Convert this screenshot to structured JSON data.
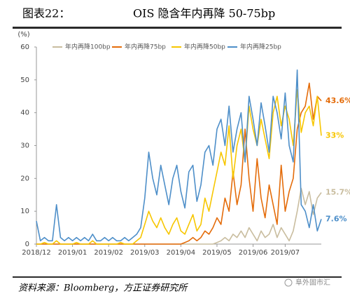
{
  "chart_data": {
    "type": "line",
    "figure_label": "图表22：",
    "title": "OIS 隐含年内再降 50-75bp",
    "y_unit": "(%)",
    "source": "资料来源：Bloomberg，方正证券研究所",
    "watermark": "阜外固市汇",
    "categories": [
      "2018/12",
      null,
      null,
      null,
      null,
      null,
      null,
      null,
      null,
      "2019/01",
      null,
      null,
      null,
      null,
      null,
      null,
      null,
      null,
      "2019/02",
      null,
      null,
      null,
      null,
      null,
      null,
      null,
      null,
      "2019/03",
      null,
      null,
      null,
      null,
      null,
      null,
      null,
      null,
      "2019/04",
      null,
      null,
      null,
      null,
      null,
      null,
      null,
      null,
      "2019/05",
      null,
      null,
      null,
      null,
      null,
      null,
      null,
      null,
      "2019/06",
      null,
      null,
      null,
      null,
      null,
      null,
      null,
      "2019/07",
      null,
      null,
      null,
      null,
      null,
      null,
      null,
      null,
      null
    ],
    "ylim": [
      0,
      60
    ],
    "yticks": [
      0,
      10,
      20,
      30,
      40,
      50,
      60
    ],
    "series": [
      {
        "name": "年内再降100bp",
        "color": "#c9bd9f",
        "values": [
          0,
          0,
          0,
          0,
          0,
          0,
          0,
          0,
          0,
          0,
          0,
          0,
          0,
          0,
          0,
          0,
          0,
          0,
          0,
          0,
          0,
          0,
          0,
          0,
          0,
          0,
          0,
          0,
          0,
          0,
          0,
          0,
          0,
          0,
          0,
          0,
          0,
          0,
          0,
          0,
          0,
          0,
          0,
          0,
          0,
          0.5,
          1,
          2,
          1,
          3,
          2,
          4,
          2,
          5,
          3,
          1,
          4,
          2,
          3,
          6,
          2,
          5,
          3,
          1,
          4,
          10,
          17,
          12,
          16,
          9,
          14,
          15.7
        ],
        "value_labels": [
          null,
          null,
          null,
          null,
          null,
          null,
          null,
          null,
          null,
          null,
          null,
          null,
          null,
          null,
          null,
          null,
          null,
          null,
          null,
          null,
          null,
          null,
          null,
          null,
          null,
          null,
          null,
          null,
          null,
          null,
          null,
          null,
          null,
          null,
          null,
          null,
          null,
          null,
          null,
          null,
          null,
          null,
          null,
          null,
          null,
          null,
          null,
          null,
          null,
          null,
          null,
          null,
          null,
          null,
          null,
          null,
          null,
          null,
          null,
          null,
          null,
          null,
          null,
          null,
          null,
          null,
          null,
          null,
          null,
          null,
          null,
          "15.7%"
        ]
      },
      {
        "name": "年内再降75bp",
        "color": "#e46c0a",
        "values": [
          0,
          0,
          0,
          0,
          0,
          0,
          0,
          0,
          0,
          0,
          0,
          0,
          0,
          0,
          0,
          0,
          0,
          0,
          0,
          0,
          0,
          0,
          0,
          0,
          0,
          0,
          0,
          0,
          0,
          0,
          0,
          0,
          0,
          0,
          0,
          0,
          0,
          0.5,
          1,
          2,
          1,
          2,
          4,
          3,
          5,
          8,
          6,
          14,
          10,
          22,
          12,
          18,
          35,
          20,
          10,
          26,
          14,
          8,
          18,
          12,
          6,
          24,
          10,
          16,
          20,
          35,
          40,
          42,
          49,
          38,
          45,
          43.6
        ],
        "value_labels": [
          null,
          null,
          null,
          null,
          null,
          null,
          null,
          null,
          null,
          null,
          null,
          null,
          null,
          null,
          null,
          null,
          null,
          null,
          null,
          null,
          null,
          null,
          null,
          null,
          null,
          null,
          null,
          null,
          null,
          null,
          null,
          null,
          null,
          null,
          null,
          null,
          null,
          null,
          null,
          null,
          null,
          null,
          null,
          null,
          null,
          null,
          null,
          null,
          null,
          null,
          null,
          null,
          null,
          null,
          null,
          null,
          null,
          null,
          null,
          null,
          null,
          null,
          null,
          null,
          null,
          null,
          null,
          null,
          null,
          null,
          null,
          "43.6%"
        ]
      },
      {
        "name": "年内再降50bp",
        "color": "#f7c600",
        "values": [
          0,
          0,
          0.5,
          0,
          0,
          1,
          0,
          0,
          0,
          0,
          0.5,
          0,
          0,
          0,
          1,
          0,
          0,
          0,
          0,
          0,
          0,
          0.5,
          0,
          0,
          0,
          1,
          2,
          6,
          10,
          7,
          5,
          8,
          5,
          3,
          6,
          8,
          4,
          3,
          6,
          9,
          4,
          6,
          14,
          10,
          16,
          22,
          28,
          24,
          36,
          20,
          30,
          35,
          25,
          42,
          35,
          30,
          38,
          32,
          26,
          40,
          45,
          36,
          42,
          38,
          30,
          47,
          34,
          40,
          42,
          36,
          45,
          33
        ],
        "value_labels": [
          null,
          null,
          null,
          null,
          null,
          null,
          null,
          null,
          null,
          null,
          null,
          null,
          null,
          null,
          null,
          null,
          null,
          null,
          null,
          null,
          null,
          null,
          null,
          null,
          null,
          null,
          null,
          null,
          null,
          null,
          null,
          null,
          null,
          null,
          null,
          null,
          null,
          null,
          null,
          null,
          null,
          null,
          null,
          null,
          null,
          null,
          null,
          null,
          null,
          null,
          null,
          null,
          null,
          null,
          null,
          null,
          null,
          null,
          null,
          null,
          null,
          null,
          null,
          null,
          null,
          null,
          null,
          null,
          null,
          null,
          null,
          "33%"
        ]
      },
      {
        "name": "年内再降25bp",
        "color": "#4e8fc9",
        "values": [
          7,
          1,
          2,
          1,
          1,
          12,
          2,
          1,
          2,
          1,
          2,
          1,
          2,
          1,
          3,
          1,
          1,
          2,
          1,
          2,
          1,
          1,
          2,
          1,
          2,
          3,
          5,
          14,
          28,
          20,
          15,
          24,
          18,
          12,
          20,
          24,
          16,
          11,
          22,
          24,
          13,
          18,
          28,
          30,
          24,
          35,
          38,
          30,
          42,
          28,
          35,
          40,
          25,
          45,
          38,
          30,
          43,
          36,
          28,
          45,
          40,
          32,
          46,
          30,
          25,
          53,
          12,
          10,
          5,
          12,
          4,
          7.6
        ],
        "value_labels": [
          null,
          null,
          null,
          null,
          null,
          null,
          null,
          null,
          null,
          null,
          null,
          null,
          null,
          null,
          null,
          null,
          null,
          null,
          null,
          null,
          null,
          null,
          null,
          null,
          null,
          null,
          null,
          null,
          null,
          null,
          null,
          null,
          null,
          null,
          null,
          null,
          null,
          null,
          null,
          null,
          null,
          null,
          null,
          null,
          null,
          null,
          null,
          null,
          null,
          null,
          null,
          null,
          null,
          null,
          null,
          null,
          null,
          null,
          null,
          null,
          null,
          null,
          null,
          null,
          null,
          null,
          null,
          null,
          null,
          null,
          null,
          "7.6%"
        ]
      }
    ]
  }
}
